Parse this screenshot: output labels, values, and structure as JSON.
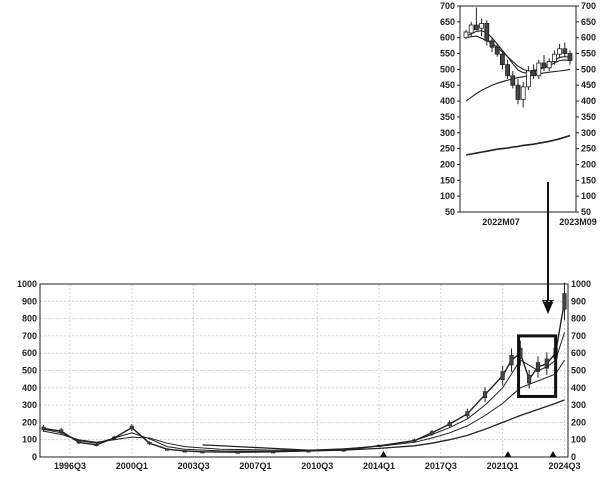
{
  "chart_data": [
    {
      "type": "candlestick",
      "role": "inset",
      "x_ticks": [
        "2022M07",
        "2023M09"
      ],
      "y_ticks": [
        700,
        650,
        600,
        550,
        500,
        450,
        400,
        350,
        300,
        250,
        200,
        150,
        100,
        50
      ],
      "ylim": [
        50,
        700
      ],
      "grid": false,
      "candles": [
        {
          "o": 600,
          "h": 625,
          "l": 595,
          "c": 618
        },
        {
          "o": 615,
          "h": 650,
          "l": 605,
          "c": 640
        },
        {
          "o": 640,
          "h": 695,
          "l": 630,
          "c": 625
        },
        {
          "o": 630,
          "h": 660,
          "l": 605,
          "c": 645
        },
        {
          "o": 645,
          "h": 655,
          "l": 575,
          "c": 590
        },
        {
          "o": 590,
          "h": 600,
          "l": 555,
          "c": 570
        },
        {
          "o": 570,
          "h": 580,
          "l": 540,
          "c": 548
        },
        {
          "o": 548,
          "h": 560,
          "l": 500,
          "c": 515
        },
        {
          "o": 515,
          "h": 530,
          "l": 470,
          "c": 480
        },
        {
          "o": 480,
          "h": 495,
          "l": 440,
          "c": 450
        },
        {
          "o": 450,
          "h": 470,
          "l": 390,
          "c": 405
        },
        {
          "o": 405,
          "h": 460,
          "l": 380,
          "c": 445
        },
        {
          "o": 445,
          "h": 510,
          "l": 435,
          "c": 495
        },
        {
          "o": 495,
          "h": 515,
          "l": 470,
          "c": 480
        },
        {
          "o": 480,
          "h": 530,
          "l": 470,
          "c": 520
        },
        {
          "o": 520,
          "h": 545,
          "l": 495,
          "c": 505
        },
        {
          "o": 505,
          "h": 535,
          "l": 495,
          "c": 525
        },
        {
          "o": 525,
          "h": 560,
          "l": 515,
          "c": 548
        },
        {
          "o": 548,
          "h": 580,
          "l": 535,
          "c": 565
        },
        {
          "o": 565,
          "h": 585,
          "l": 540,
          "c": 550
        },
        {
          "o": 550,
          "h": 560,
          "l": 515,
          "c": 528
        }
      ],
      "lines": [
        [
          600,
          603,
          605,
          598,
          590,
          583,
          570,
          555,
          540,
          525,
          510,
          500,
          495,
          497,
          500,
          505,
          512,
          520,
          528,
          530,
          528
        ],
        [
          605,
          612,
          620,
          622,
          615,
          600,
          580,
          560,
          540,
          518,
          498,
          490,
          488,
          492,
          500,
          510,
          518,
          528,
          538,
          540,
          538
        ],
        [
          400,
          412,
          424,
          434,
          442,
          450,
          456,
          461,
          466,
          470,
          474,
          477,
          480,
          483,
          486,
          489,
          491,
          493,
          495,
          497,
          500
        ],
        [
          230,
          233,
          236,
          239,
          242,
          245,
          248,
          250,
          252,
          255,
          257,
          260,
          262,
          264,
          267,
          270,
          273,
          277,
          281,
          286,
          291
        ]
      ]
    },
    {
      "type": "candlestick",
      "role": "main",
      "x_ticks": [
        "1996Q3",
        "2000Q1",
        "2003Q3",
        "2007Q1",
        "2010Q3",
        "2014Q1",
        "2017Q3",
        "2021Q1",
        "2024Q3"
      ],
      "y_ticks": [
        1000,
        900,
        800,
        700,
        600,
        500,
        400,
        300,
        200,
        100,
        0
      ],
      "ylim": [
        0,
        1000
      ],
      "grid": true,
      "series": [
        {
          "kind": "price",
          "points": [
            [
              1995,
              165
            ],
            [
              1996,
              150
            ],
            [
              1997,
              85
            ],
            [
              1998,
              70
            ],
            [
              1999,
              110
            ],
            [
              2000,
              170
            ],
            [
              2001,
              80
            ],
            [
              2002,
              45
            ],
            [
              2003,
              35
            ],
            [
              2004,
              30
            ],
            [
              2006,
              28
            ],
            [
              2008,
              30
            ],
            [
              2010,
              35
            ],
            [
              2012,
              40
            ],
            [
              2014,
              65
            ],
            [
              2016,
              95
            ],
            [
              2017,
              140
            ],
            [
              2018,
              190
            ],
            [
              2019,
              250
            ],
            [
              2020,
              360
            ],
            [
              2021,
              470
            ],
            [
              2021.5,
              560
            ],
            [
              2022,
              600
            ],
            [
              2022.5,
              450
            ],
            [
              2023,
              520
            ],
            [
              2023.5,
              540
            ],
            [
              2024,
              600
            ],
            [
              2024.5,
              900
            ]
          ]
        },
        {
          "kind": "ma-1",
          "points": [
            [
              1995,
              160
            ],
            [
              1996,
              140
            ],
            [
              1997,
              95
            ],
            [
              1998,
              80
            ],
            [
              1999,
              110
            ],
            [
              2000,
              140
            ],
            [
              2001,
              105
            ],
            [
              2002,
              60
            ],
            [
              2003,
              45
            ],
            [
              2005,
              35
            ],
            [
              2008,
              33
            ],
            [
              2010,
              38
            ],
            [
              2012,
              45
            ],
            [
              2014,
              65
            ],
            [
              2016,
              95
            ],
            [
              2017,
              130
            ],
            [
              2018,
              170
            ],
            [
              2019,
              220
            ],
            [
              2020,
              300
            ],
            [
              2021,
              400
            ],
            [
              2022,
              560
            ],
            [
              2022.5,
              530
            ],
            [
              2023,
              500
            ],
            [
              2023.5,
              520
            ],
            [
              2024,
              560
            ],
            [
              2024.5,
              720
            ]
          ]
        },
        {
          "kind": "ma-2",
          "points": [
            [
              1995,
              150
            ],
            [
              1996,
              130
            ],
            [
              1997,
              100
            ],
            [
              1998,
              85
            ],
            [
              1999,
              100
            ],
            [
              2000,
              115
            ],
            [
              2001,
              110
            ],
            [
              2002,
              80
            ],
            [
              2003,
              60
            ],
            [
              2005,
              45
            ],
            [
              2008,
              40
            ],
            [
              2010,
              40
            ],
            [
              2012,
              48
            ],
            [
              2014,
              62
            ],
            [
              2016,
              85
            ],
            [
              2017,
              110
            ],
            [
              2018,
              140
            ],
            [
              2019,
              180
            ],
            [
              2020,
              240
            ],
            [
              2021,
              310
            ],
            [
              2022,
              400
            ],
            [
              2023,
              440
            ],
            [
              2024,
              480
            ],
            [
              2024.5,
              560
            ]
          ]
        },
        {
          "kind": "ma-3",
          "points": [
            [
              2004,
              70
            ],
            [
              2006,
              60
            ],
            [
              2008,
              50
            ],
            [
              2010,
              40
            ],
            [
              2012,
              40
            ],
            [
              2014,
              50
            ],
            [
              2016,
              65
            ],
            [
              2017,
              80
            ],
            [
              2018,
              100
            ],
            [
              2019,
              125
            ],
            [
              2020,
              160
            ],
            [
              2021,
              200
            ],
            [
              2022,
              240
            ],
            [
              2023,
              275
            ],
            [
              2024,
              310
            ],
            [
              2024.5,
              330
            ]
          ]
        }
      ],
      "triangles": [
        2014.25,
        2021.3,
        2023.85
      ],
      "highlight_box": {
        "x_range": [
          2021.9,
          2024.0
        ],
        "y_range": [
          350,
          700
        ]
      }
    }
  ],
  "colors": {
    "ink": "#222222",
    "grid": "#c8c8c8",
    "candle_fill": "#444444"
  }
}
